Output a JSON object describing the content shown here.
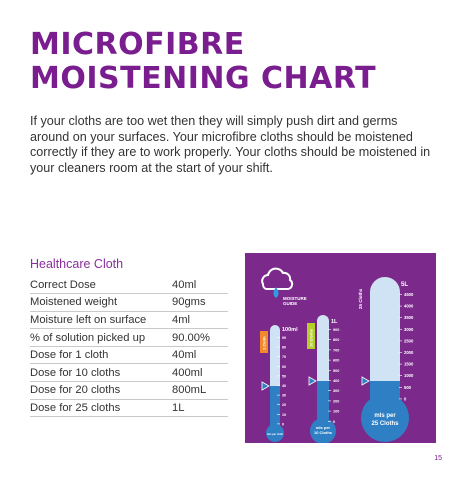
{
  "title": {
    "line1": "MICROFIBRE",
    "line2": "MOISTENING CHART"
  },
  "intro": "If your cloths are too wet then they will simply push dirt and germs around on your surfaces. Your microfibre cloths should be moistened correctly if they are to work properly. Your cloths should be moistened in your cleaners room at the start of your shift.",
  "table": {
    "title": "Healthcare Cloth",
    "rows": [
      {
        "label": "Correct Dose",
        "value": "40ml"
      },
      {
        "label": "Moistened weight",
        "value": "90gms"
      },
      {
        "label": "Moisture left on surface",
        "value": "4ml"
      },
      {
        "label": "% of solution picked up",
        "value": "90.00%"
      },
      {
        "label": "Dose for 1 cloth",
        "value": "40ml"
      },
      {
        "label": "Dose for 10 cloths",
        "value": "400ml"
      },
      {
        "label": "Dose for 20 cloths",
        "value": "800mL"
      },
      {
        "label": "Dose for 25 cloths",
        "value": "1L"
      }
    ]
  },
  "guide": {
    "logo_line1": "MOISTURE",
    "logo_line2": "GUIDE",
    "colors": {
      "background": "#7b2a8b",
      "liquid": "#2f7fc4",
      "tube": "#cfe3f4",
      "tag1": "#f28a2c",
      "tag2": "#b5cf2a"
    },
    "tube1": {
      "tag": "1 Cloth",
      "top_label": "100ml",
      "ticks": [
        "90",
        "80",
        "70",
        "60",
        "50",
        "40",
        "30",
        "20",
        "10",
        "0"
      ],
      "bulb": "mls per cloth",
      "fill_fraction": 0.4
    },
    "tube2": {
      "tag": "10 Cloths",
      "top_label": "1L",
      "ticks": [
        "900",
        "800",
        "700",
        "600",
        "500",
        "400",
        "300",
        "200",
        "100",
        "0"
      ],
      "bulb_line1": "mls per",
      "bulb_line2": "10 Cloths",
      "fill_fraction": 0.4
    },
    "tube3": {
      "tag": "25 Cloths",
      "top_label": "5L",
      "ticks": [
        "4500",
        "4000",
        "3500",
        "3000",
        "2500",
        "2000",
        "1500",
        "1000",
        "500",
        "0"
      ],
      "bulb_line1": "mls per",
      "bulb_line2": "25 Cloths",
      "fill_fraction": 0.2
    }
  },
  "page_number": "15"
}
